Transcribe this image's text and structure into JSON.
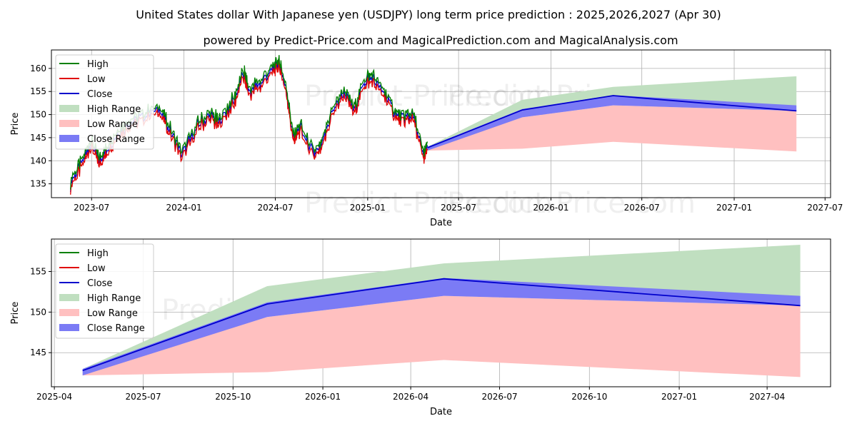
{
  "title": "United States dollar With Japanese yen (USDJPY) long term price prediction : 2025,2026,2027 (Apr 30)",
  "subtitle": "powered by Predict-Price.com and MagicalPrediction.com and MagicalAnalysis.com",
  "watermark": "Predict-Price.com",
  "colors": {
    "high": "#008000",
    "low": "#e00000",
    "close": "#0000cc",
    "high_range": "#c0dfc0",
    "low_range": "#ffc0c0",
    "close_range": "#7b7bf5",
    "grid": "#b0b0b0"
  },
  "chart_data": [
    {
      "type": "line",
      "title": "",
      "xlabel": "Date",
      "ylabel": "Price",
      "ylim": [
        132,
        164
      ],
      "xlim": [
        "2023-04-12",
        "2027-07-12"
      ],
      "yticks": [
        135,
        140,
        145,
        150,
        155,
        160
      ],
      "xticks": [
        "2023-07",
        "2024-01",
        "2024-07",
        "2025-01",
        "2025-07",
        "2026-01",
        "2026-07",
        "2027-01",
        "2027-07"
      ],
      "grid": true,
      "legend": {
        "position": "top-left",
        "entries": [
          "High",
          "Low",
          "Close",
          "High Range",
          "Low Range",
          "Close Range"
        ]
      },
      "history": {
        "series": [
          "High",
          "Low",
          "Close"
        ],
        "dates": [
          "2023-05-20",
          "2023-06-10",
          "2023-06-30",
          "2023-07-15",
          "2023-07-30",
          "2023-08-20",
          "2023-09-15",
          "2023-10-15",
          "2023-11-15",
          "2023-12-01",
          "2023-12-28",
          "2024-01-25",
          "2024-02-20",
          "2024-03-10",
          "2024-04-10",
          "2024-04-29",
          "2024-05-10",
          "2024-06-05",
          "2024-06-30",
          "2024-07-10",
          "2024-07-25",
          "2024-08-05",
          "2024-08-20",
          "2024-09-16",
          "2024-10-01",
          "2024-10-20",
          "2024-11-15",
          "2024-12-05",
          "2024-12-25",
          "2025-01-10",
          "2025-02-01",
          "2025-02-25",
          "2025-03-15",
          "2025-04-01",
          "2025-04-22",
          "2025-04-30"
        ],
        "values": [
          135,
          139,
          144,
          140,
          142,
          146,
          148,
          150,
          151,
          147,
          141,
          147,
          150,
          148,
          153,
          159,
          155,
          157,
          160.5,
          161,
          154,
          145,
          147,
          141,
          143,
          150,
          155,
          151,
          157,
          158,
          155,
          150,
          149,
          150,
          141,
          143
        ]
      },
      "forecast": {
        "dates": [
          "2025-04-30",
          "2025-11-05",
          "2026-05-05",
          "2027-05-05"
        ],
        "high_range": {
          "upper": [
            143,
            153.2,
            156,
            158.3
          ],
          "lower": [
            142.5,
            149.8,
            152.2,
            152
          ]
        },
        "low_range": {
          "upper": [
            142.8,
            149.4,
            152,
            150.8
          ],
          "lower": [
            142.2,
            142.6,
            144.1,
            142
          ]
        },
        "close_range": {
          "upper": [
            143,
            151.2,
            154.2,
            152
          ],
          "lower": [
            142.2,
            149.4,
            152,
            150.8
          ]
        },
        "close": [
          142.8,
          151,
          154.1,
          150.8
        ]
      }
    },
    {
      "type": "line",
      "title": "",
      "xlabel": "Date",
      "ylabel": "Price",
      "ylim": [
        140.8,
        159
      ],
      "xlim": [
        "2025-03-29",
        "2027-06-05"
      ],
      "yticks": [
        145,
        150,
        155
      ],
      "xticks": [
        "2025-04",
        "2025-07",
        "2025-10",
        "2026-01",
        "2026-04",
        "2026-07",
        "2026-10",
        "2027-01",
        "2027-04"
      ],
      "grid": true,
      "legend": {
        "position": "top-left",
        "entries": [
          "High",
          "Low",
          "Close",
          "High Range",
          "Low Range",
          "Close Range"
        ]
      },
      "forecast": {
        "dates": [
          "2025-04-30",
          "2025-11-05",
          "2026-05-05",
          "2027-05-05"
        ],
        "high_range": {
          "upper": [
            143,
            153.2,
            156,
            158.3
          ],
          "lower": [
            142.5,
            149.8,
            152.2,
            152
          ]
        },
        "low_range": {
          "upper": [
            142.8,
            149.4,
            152,
            150.8
          ],
          "lower": [
            142.2,
            142.6,
            144.1,
            142
          ]
        },
        "close_range": {
          "upper": [
            143,
            151.2,
            154.2,
            152
          ],
          "lower": [
            142.2,
            149.4,
            152,
            150.8
          ]
        },
        "close": [
          142.8,
          151,
          154.1,
          150.8
        ]
      }
    }
  ]
}
